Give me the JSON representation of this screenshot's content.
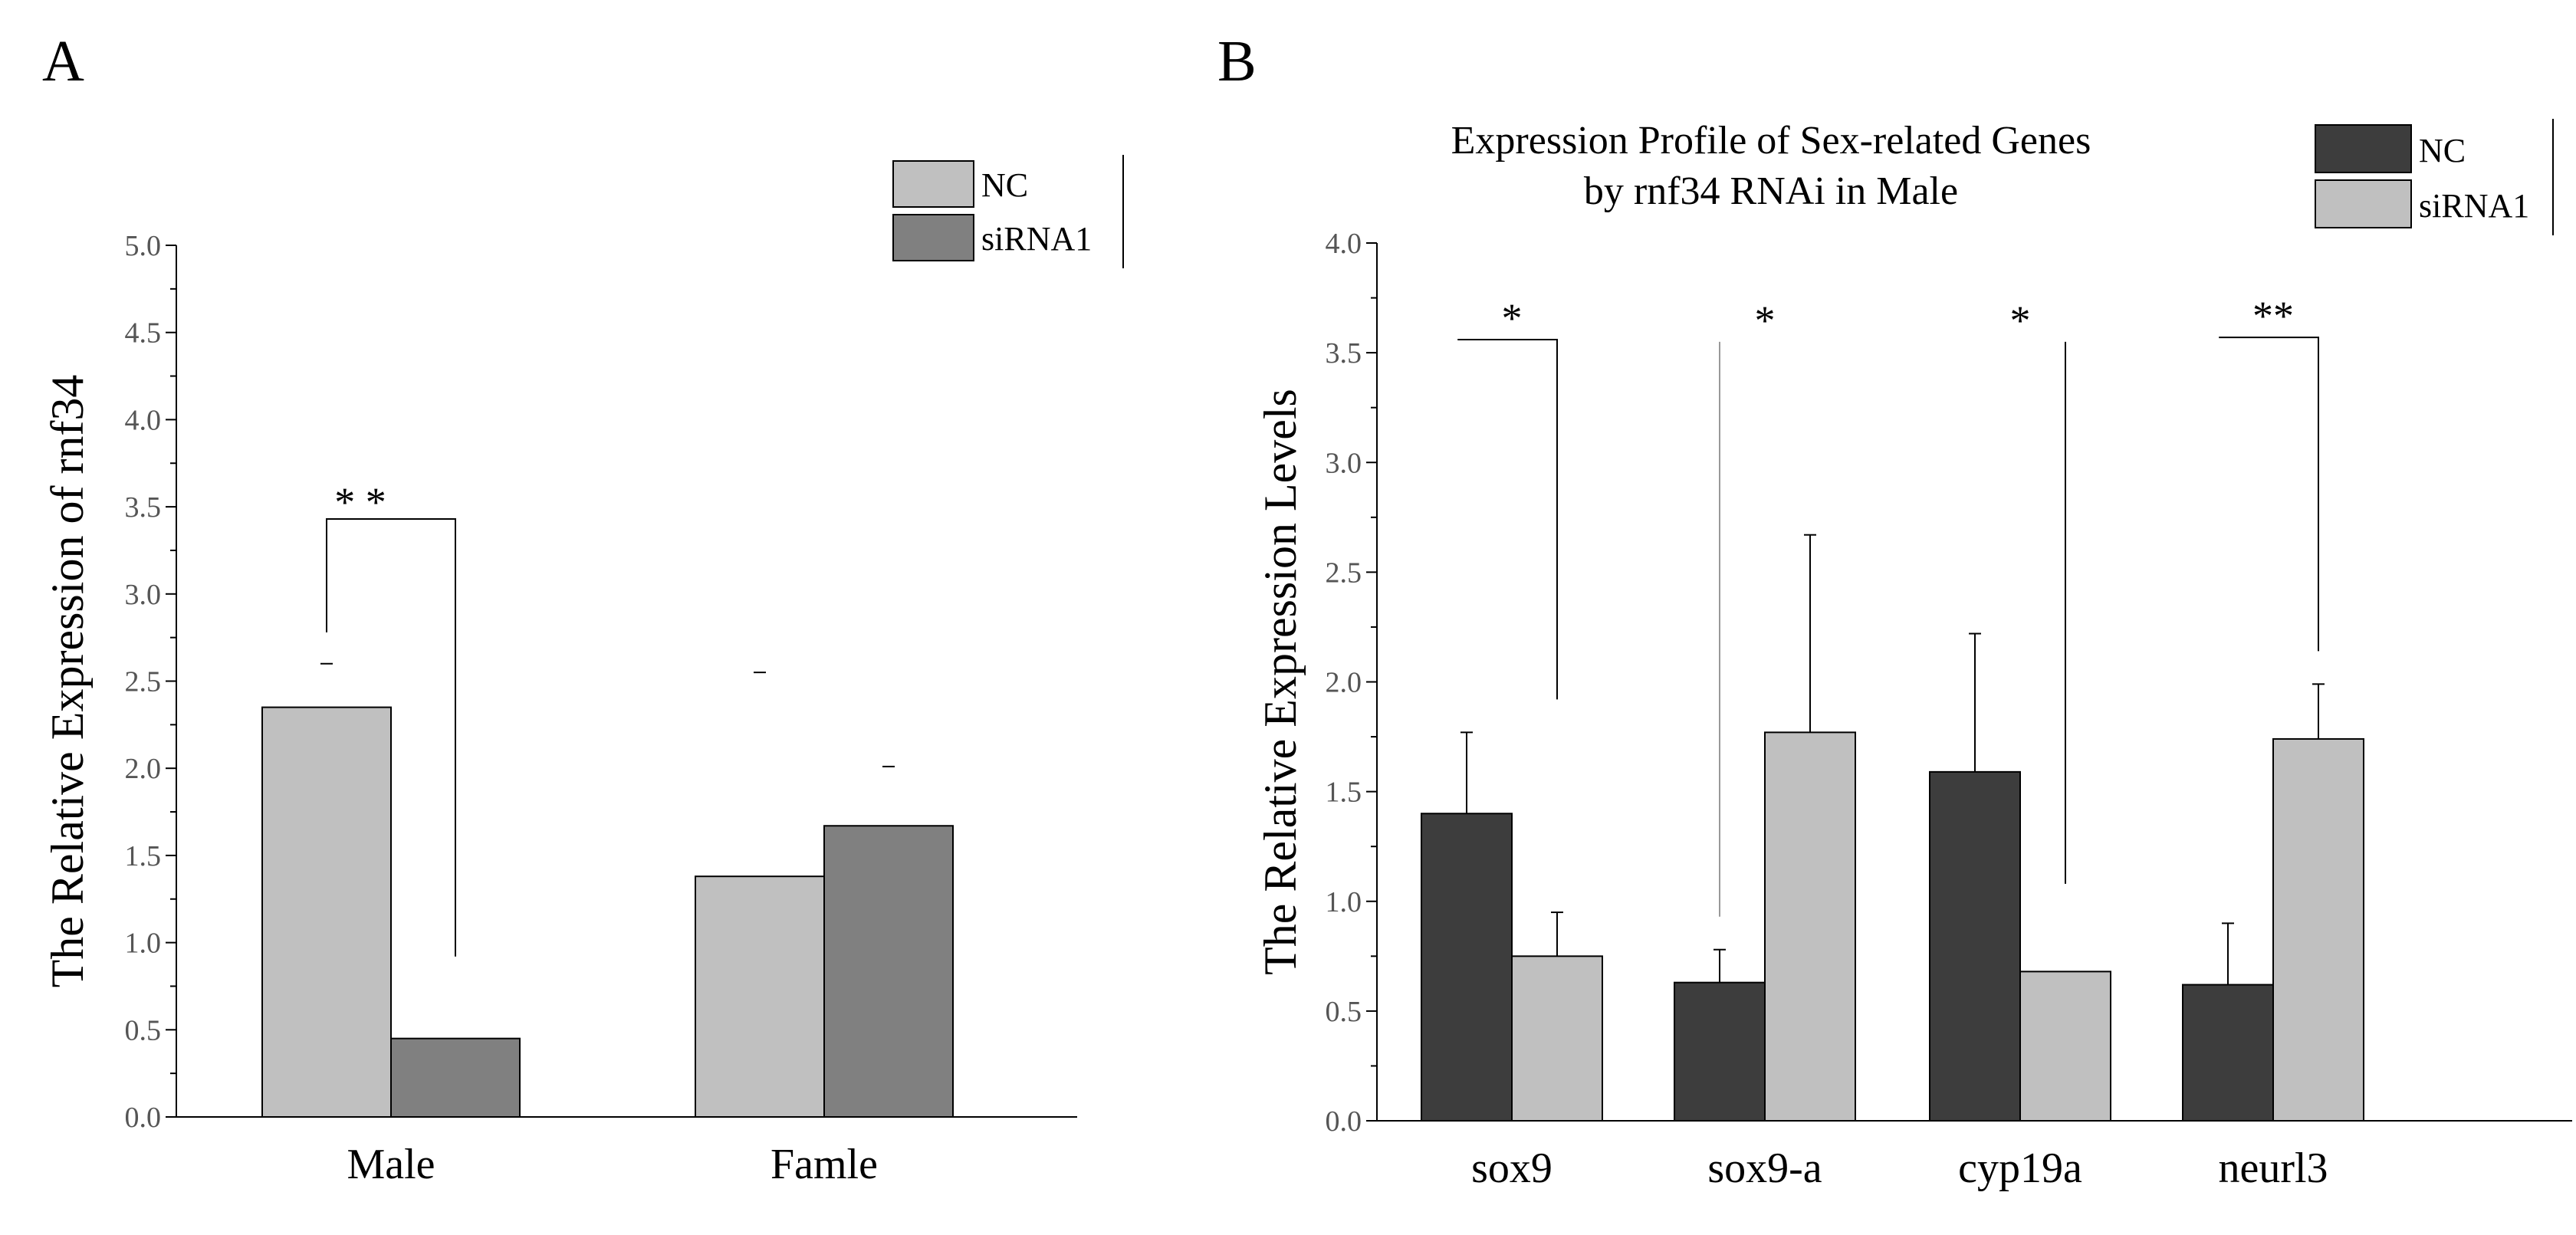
{
  "chart_data": [
    {
      "panel": "A",
      "type": "bar",
      "title": "",
      "xlabel": "",
      "ylabel": "The Relative Expression of rnf34",
      "ylim": [
        0,
        5.0
      ],
      "yticks": [
        "0.0",
        "0.5",
        "1.0",
        "1.5",
        "2.0",
        "2.5",
        "3.0",
        "3.5",
        "4.0",
        "4.5",
        "5.0"
      ],
      "categories": [
        "Male",
        "Famle"
      ],
      "series": [
        {
          "name": "NC",
          "values": [
            2.35,
            1.38
          ],
          "error_top": [
            2.6,
            2.55
          ],
          "color": "#c0c0c0"
        },
        {
          "name": "siRNA1",
          "values": [
            0.45,
            1.67
          ],
          "error_top": [
            0.45,
            2.01
          ],
          "color": "#808080"
        }
      ],
      "significance": [
        {
          "label": "* *",
          "category": "Male",
          "level": 3.43,
          "left_drop": 2.78,
          "right_drop": 0.92
        }
      ],
      "legend": [
        "NC",
        "siRNA1"
      ],
      "legend_position": "top-right"
    },
    {
      "panel": "B",
      "type": "bar",
      "title_lines": [
        "Expression Profile of Sex-related Genes",
        "by rnf34 RNAi in Male"
      ],
      "xlabel": "",
      "ylabel": "The Relative Expression Levels",
      "ylim": [
        0,
        4.0
      ],
      "yticks": [
        "0.0",
        "0.5",
        "1.0",
        "1.5",
        "2.0",
        "2.5",
        "3.0",
        "3.5",
        "4.0"
      ],
      "categories": [
        "sox9",
        "sox9-a",
        "cyp19a",
        "neurl3"
      ],
      "series": [
        {
          "name": "NC",
          "values": [
            1.4,
            0.63,
            1.59,
            0.62
          ],
          "error_top": [
            1.77,
            0.78,
            2.22,
            0.9
          ],
          "color": "#3d3d3d"
        },
        {
          "name": "siRNA1",
          "values": [
            0.75,
            1.77,
            0.68,
            1.74
          ],
          "error_top": [
            0.95,
            2.67,
            0.68,
            1.99
          ],
          "color": "#c0c0c0"
        }
      ],
      "significance": [
        {
          "label": "*",
          "category": "sox9",
          "level": 3.56,
          "bracket": true
        },
        {
          "label": "*",
          "category": "sox9-a",
          "level": 3.55,
          "bracket": false
        },
        {
          "label": "*",
          "category": "cyp19a",
          "level": 3.55,
          "bracket": false
        },
        {
          "label": "**",
          "category": "neurl3",
          "level": 3.57,
          "bracket": true
        }
      ],
      "legend": [
        "NC",
        "siRNA1"
      ],
      "legend_position": "top-right"
    }
  ]
}
